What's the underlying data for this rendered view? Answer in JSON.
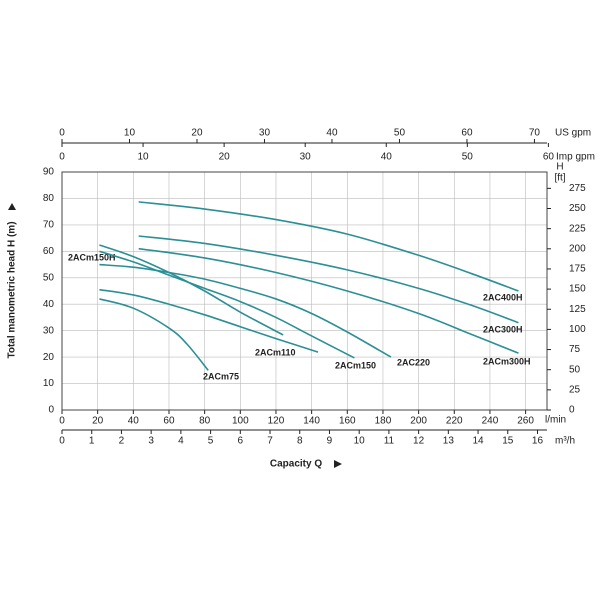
{
  "chart_data": {
    "type": "line",
    "xlabel": "Capacity Q",
    "ylabel": "Total manometric head H (m)",
    "xunit": "l/min",
    "xlim": [
      0,
      272
    ],
    "xticks": [
      0,
      20,
      40,
      60,
      80,
      100,
      120,
      140,
      160,
      180,
      200,
      220,
      240,
      260
    ],
    "ylim": [
      0,
      90
    ],
    "yticks": [
      0,
      10,
      20,
      30,
      40,
      50,
      60,
      70,
      80,
      90
    ],
    "y2label_top": "H",
    "y2label": "[ft]",
    "y2lim": [
      0,
      295.3
    ],
    "y2ticks": [
      0,
      25,
      50,
      75,
      100,
      125,
      150,
      175,
      200,
      225,
      250,
      275
    ],
    "secondary_x_axes": [
      {
        "label": "m³/h",
        "position": "bottom",
        "xlim": [
          0,
          16.32
        ],
        "xticks": [
          0,
          1,
          2,
          3,
          4,
          5,
          6,
          7,
          8,
          9,
          10,
          11,
          12,
          13,
          14,
          15,
          16
        ]
      },
      {
        "label": "US gpm",
        "position": "top",
        "xlim": [
          0,
          71.86
        ],
        "xticks": [
          0,
          10,
          20,
          30,
          40,
          50,
          60,
          70
        ]
      },
      {
        "label": "Imp gpm",
        "position": "top",
        "xlim": [
          0,
          59.83
        ],
        "xticks": [
          0,
          10,
          20,
          30,
          40,
          50,
          60
        ]
      }
    ],
    "grid": true,
    "series": [
      {
        "name": "2ACm150H",
        "color": "#2b8f95",
        "x": [
          21,
          40,
          60,
          80,
          100,
          124
        ],
        "values": [
          62.4,
          58,
          52,
          45,
          37,
          28.4
        ]
      },
      {
        "name": "2ACm110",
        "color": "#2b8f95",
        "x": [
          21,
          40,
          60,
          80,
          100,
          120,
          143.6
        ],
        "values": [
          45.5,
          43.5,
          40,
          36,
          31.5,
          27,
          21.9
        ]
      },
      {
        "name": "2ACm150",
        "color": "#2b8f95",
        "x": [
          21,
          40,
          60,
          80,
          100,
          120,
          140,
          164
        ],
        "values": [
          60,
          56,
          51,
          46,
          41,
          35,
          28,
          19.7
        ]
      },
      {
        "name": "2AC220",
        "color": "#2b8f95",
        "x": [
          21,
          40,
          60,
          80,
          100,
          120,
          140,
          160,
          184.5
        ],
        "values": [
          55,
          54,
          52,
          49.5,
          46,
          42,
          36.5,
          29.5,
          20
        ]
      },
      {
        "name": "2ACm75",
        "color": "#2b8f95",
        "x": [
          21,
          40,
          60,
          70,
          82
        ],
        "values": [
          42,
          38.5,
          31,
          25,
          15
        ]
      },
      {
        "name": "2AC400H",
        "color": "#2b8f95",
        "x": [
          43,
          80,
          120,
          160,
          200,
          230,
          256
        ],
        "values": [
          78.7,
          76,
          72,
          66.5,
          58.5,
          51.5,
          45
        ]
      },
      {
        "name": "2AC300H",
        "color": "#2b8f95",
        "x": [
          43,
          80,
          120,
          160,
          200,
          230,
          256
        ],
        "values": [
          65.8,
          63,
          58.5,
          53,
          46,
          39.5,
          33
        ]
      },
      {
        "name": "2ACm300H",
        "color": "#2b8f95",
        "x": [
          43,
          80,
          120,
          160,
          200,
          230,
          256
        ],
        "values": [
          61,
          57.5,
          52,
          45,
          36.5,
          28.5,
          21.5
        ]
      }
    ]
  }
}
